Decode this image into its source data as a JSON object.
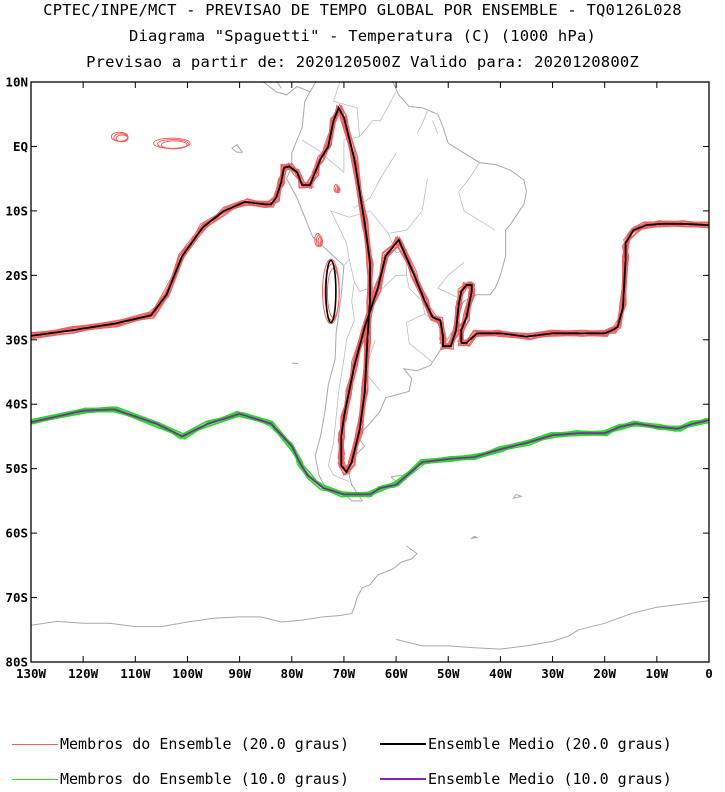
{
  "header": {
    "line1": "CPTEC/INPE/MCT - PREVISAO DE TEMPO GLOBAL POR ENSEMBLE - TQ0126L028",
    "line2": "Diagrama \"Spaguetti\" - Temperatura (C) (1000 hPa)",
    "line3": "Previsao a partir de: 2020120500Z  Valido para: 2020120800Z"
  },
  "chart_data": {
    "type": "line",
    "title": "CPTEC/INPE/MCT - PREVISAO DE TEMPO GLOBAL POR ENSEMBLE - TQ0126L028",
    "subtitle": "Diagrama \"Spaguetti\" - Temperatura (C) (1000 hPa)",
    "xlim": [
      -130,
      0
    ],
    "ylim": [
      -80,
      10
    ],
    "x_ticks": [
      -130,
      -120,
      -110,
      -100,
      -90,
      -80,
      -70,
      -60,
      -50,
      -40,
      -30,
      -20,
      -10,
      0
    ],
    "x_tick_labels": [
      "130W",
      "120W",
      "110W",
      "100W",
      "90W",
      "80W",
      "70W",
      "60W",
      "50W",
      "40W",
      "30W",
      "20W",
      "10W",
      "0"
    ],
    "y_ticks": [
      10,
      0,
      -10,
      -20,
      -30,
      -40,
      -50,
      -60,
      -70,
      -80
    ],
    "y_tick_labels": [
      "10N",
      "EQ",
      "10S",
      "20S",
      "30S",
      "40S",
      "50S",
      "60S",
      "70S",
      "80S"
    ],
    "grid": false,
    "legend_placement": "bottom",
    "colors": {
      "members_20": "#f06060",
      "mean_20": "#000000",
      "members_10": "#22dd22",
      "mean_10": "#8e1fb0",
      "coast": "#a8a8a8"
    },
    "series": [
      {
        "name": "Ensemble Medio (20.0 graus)",
        "x": [
          -130,
          -122,
          -114,
          -107,
          -104,
          -101,
          -97,
          -93,
          -89,
          -85,
          -84,
          -83,
          -82,
          -81.5,
          -80.5,
          -79,
          -78,
          -76.5,
          -75.5,
          -74.5,
          -73,
          -72,
          -71,
          -70,
          -68,
          -66,
          -65,
          -65,
          -65.5,
          -66,
          -67,
          -68.5,
          -69.5,
          -70.5,
          -70.5,
          -70.5,
          -70,
          -69,
          -68,
          -66,
          -63.5,
          -62,
          -59.5,
          -56.5,
          -54.5,
          -53,
          -51.5,
          -51,
          -51,
          -49.5,
          -48.5,
          -48,
          -47.5,
          -46.5,
          -45.5,
          -45.5,
          -46.5,
          -47.5,
          -47.5,
          -46.5,
          -44.5,
          -40,
          -35,
          -30,
          -24,
          -20,
          -18.5,
          -17.5,
          -16.5,
          -16,
          -16,
          -14.5,
          -12,
          -9,
          -5,
          0
        ],
        "y": [
          -29.4,
          -28.5,
          -27.5,
          -26.2,
          -23,
          -17,
          -12.5,
          -10,
          -8.6,
          -9,
          -9,
          -8,
          -5.5,
          -3.3,
          -3.1,
          -4,
          -6,
          -6,
          -4,
          -2,
          0,
          4,
          6,
          4.5,
          -2,
          -12,
          -18,
          -24,
          -30,
          -38,
          -44,
          -49,
          -50.5,
          -49.5,
          -48,
          -45,
          -42,
          -38,
          -34,
          -28,
          -22,
          -17,
          -14.5,
          -20,
          -24,
          -26.5,
          -27,
          -29.5,
          -31,
          -31,
          -28.5,
          -24.5,
          -22.5,
          -21.5,
          -21.5,
          -22.5,
          -26.5,
          -28.5,
          -30.5,
          -30.5,
          -29,
          -29,
          -29.5,
          -29,
          -29,
          -29,
          -28.5,
          -28,
          -25,
          -17.5,
          -15,
          -13,
          -12.2,
          -12,
          -12,
          -12.2
        ]
      },
      {
        "name": "Ensemble Medio (10.0 graus)",
        "x": [
          -130,
          -120,
          -114,
          -106,
          -101,
          -96,
          -90,
          -84,
          -80,
          -78.5,
          -77,
          -74,
          -70,
          -65,
          -63,
          -60,
          -55,
          -50,
          -45,
          -40,
          -35,
          -30,
          -25,
          -20,
          -17,
          -14,
          -10,
          -6,
          -3,
          0
        ],
        "y": [
          -42.8,
          -41,
          -40.8,
          -43,
          -45,
          -43,
          -41.5,
          -43,
          -46.5,
          -49,
          -51,
          -53,
          -54,
          -54,
          -53,
          -52.5,
          -49,
          -48.5,
          -48.2,
          -47,
          -46,
          -44.8,
          -44.5,
          -44.5,
          -43.5,
          -43,
          -43.5,
          -43.8,
          -43,
          -42.5
        ]
      },
      {
        "name": "Membros do Ensemble (20.0 graus)",
        "x": [],
        "y": []
      },
      {
        "name": "Membros do Ensemble (10.0 graus)",
        "x": [],
        "y": []
      }
    ]
  },
  "legend": {
    "members_20": "Membros do Ensemble (20.0 graus)",
    "mean_20": "Ensemble Medio (20.0 graus)",
    "members_10": "Membros do Ensemble (10.0 graus)",
    "mean_10": "Ensemble Medio (10.0 graus)"
  }
}
